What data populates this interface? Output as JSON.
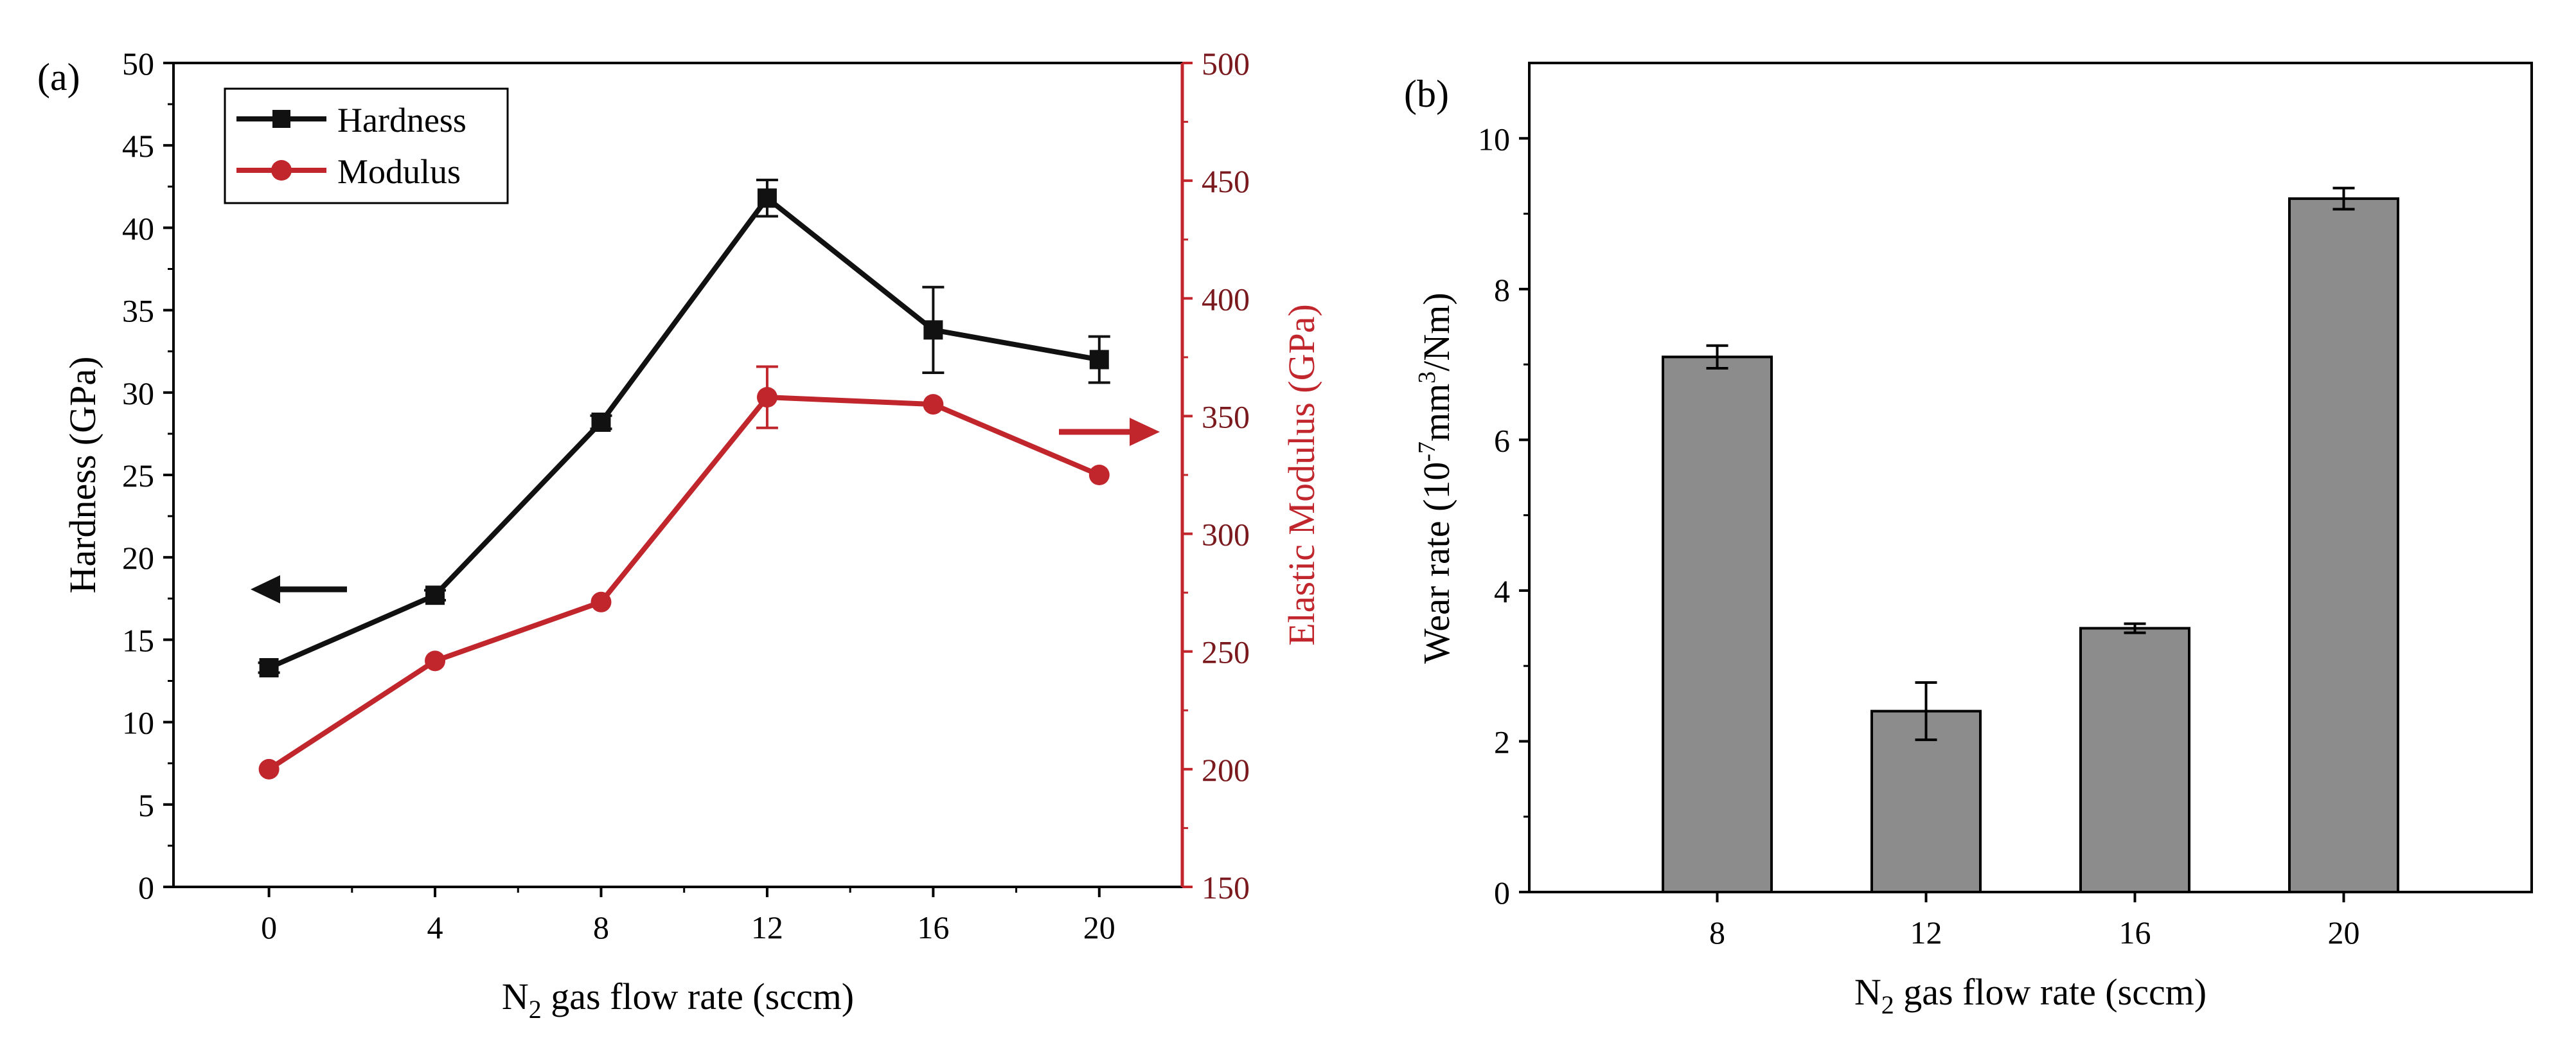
{
  "chart_data": [
    {
      "type": "line",
      "panel_label": "(a)",
      "xlabel": {
        "pre": "N",
        "sub": "2",
        "post": " gas flow rate (sccm)"
      },
      "ylabel_left": "Hardness (GPa)",
      "ylabel_right": "Elastic Modulus (GPa)",
      "x": [
        0,
        4,
        8,
        12,
        16,
        20
      ],
      "x_ticks": [
        "0",
        "4",
        "8",
        "12",
        "16",
        "20"
      ],
      "xlim": [
        -2.3,
        22
      ],
      "ylim_left": [
        0,
        50
      ],
      "yticks_left": [
        "0",
        "5",
        "10",
        "15",
        "20",
        "25",
        "30",
        "35",
        "40",
        "45",
        "50"
      ],
      "ylim_right": [
        150,
        500
      ],
      "yticks_right": [
        "150",
        "200",
        "250",
        "300",
        "350",
        "400",
        "450",
        "500"
      ],
      "colors": {
        "hardness": "#111111",
        "modulus": "#c0262c"
      },
      "series": [
        {
          "name": "Hardness",
          "axis": "left",
          "values": [
            13.3,
            17.7,
            28.2,
            41.8,
            33.8,
            32.0
          ],
          "errors": [
            0.3,
            0.3,
            0.4,
            1.1,
            2.6,
            1.4
          ]
        },
        {
          "name": "Modulus",
          "axis": "right",
          "values": [
            200,
            246,
            271,
            358,
            355,
            325
          ],
          "errors": [
            0,
            0,
            0,
            13,
            0,
            0
          ]
        }
      ]
    },
    {
      "type": "bar",
      "panel_label": "(b)",
      "xlabel": {
        "pre": "N",
        "sub": "2",
        "post": " gas flow rate (sccm)"
      },
      "ylabel": {
        "pre": "Wear rate (10",
        "sup1": "-7",
        "mid": "mm",
        "sup2": "3",
        "post": "/Nm)"
      },
      "categories": [
        "8",
        "12",
        "16",
        "20"
      ],
      "values": [
        7.1,
        2.4,
        3.5,
        9.2
      ],
      "errors": [
        0.15,
        0.38,
        0.06,
        0.14
      ],
      "ylim": [
        0,
        11
      ],
      "yticks": [
        "0",
        "2",
        "4",
        "6",
        "8",
        "10"
      ],
      "colors": {
        "bar": "#8c8c8c"
      }
    }
  ]
}
